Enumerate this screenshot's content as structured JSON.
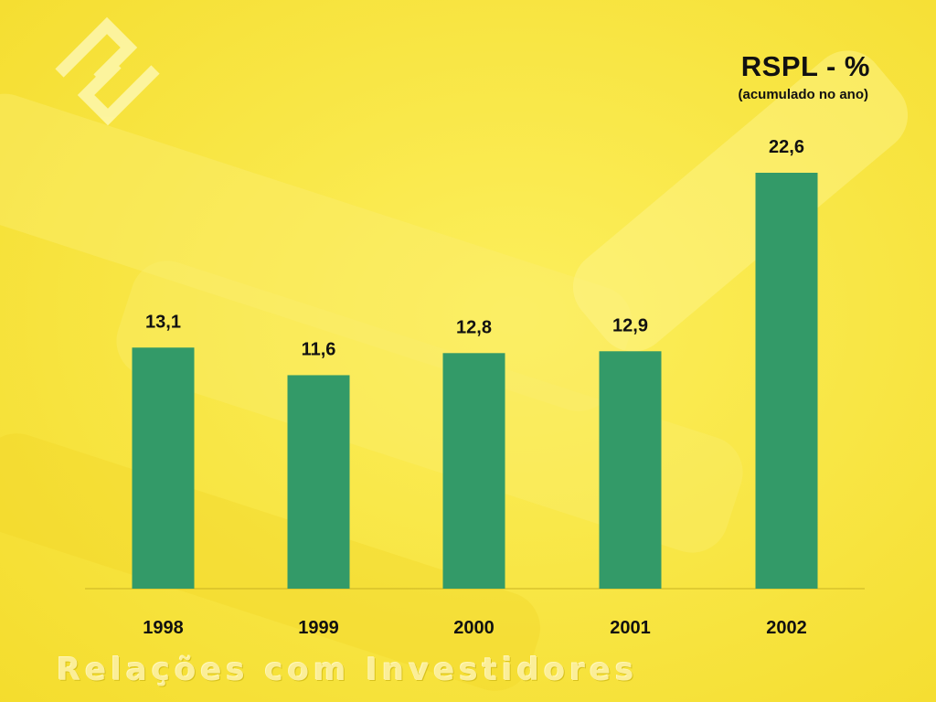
{
  "slide": {
    "title": "RSPL - %",
    "subtitle": "(acumulado no ano)",
    "footer": "Relações com Investidores",
    "colors": {
      "background": "#f7e33a",
      "bar": "#339a68",
      "axis": "#c9b322",
      "text": "#111111"
    },
    "logo_icon": "banco-do-brasil-logo-icon"
  },
  "chart_data": {
    "type": "bar",
    "title": "RSPL - %",
    "subtitle": "(acumulado no ano)",
    "categories": [
      "1998",
      "1999",
      "2000",
      "2001",
      "2002"
    ],
    "values": [
      13.1,
      11.6,
      12.8,
      12.9,
      22.6
    ],
    "value_labels": [
      "13,1",
      "11,6",
      "12,8",
      "12,9",
      "22,6"
    ],
    "xlabel": "",
    "ylabel": "",
    "ylim": [
      0,
      25
    ],
    "grid": false,
    "legend": "none"
  }
}
